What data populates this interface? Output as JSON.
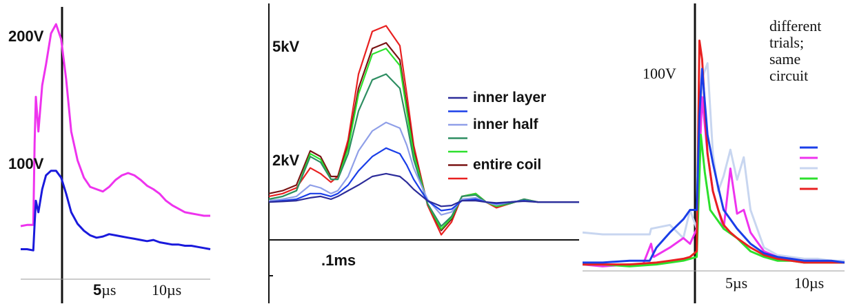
{
  "chart_data": [
    {
      "type": "line",
      "panel": "left",
      "y_tick_labels": [
        "200V",
        "100V"
      ],
      "x_tick_labels": [
        {
          "bold": "5",
          "rest": "µs"
        },
        {
          "bold": "",
          "rest": "10µs"
        }
      ],
      "x_unit": "µs",
      "y_unit": "V",
      "xlim": [
        -1,
        14
      ],
      "ylim": [
        -5,
        225
      ],
      "series": [
        {
          "color": "#ee33ee",
          "x": [
            -1,
            -0.5,
            0,
            0.1,
            0.2,
            0.4,
            0.7,
            1,
            1.4,
            1.8,
            2.2,
            2.6,
            3,
            3.5,
            4,
            4.5,
            5,
            5.5,
            6,
            6.5,
            7,
            7.5,
            8,
            8.5,
            9,
            9.5,
            10,
            10.5,
            11,
            11.5,
            12,
            12.5,
            13,
            13.5,
            14
          ],
          "y": [
            38,
            39,
            39,
            110,
            150,
            120,
            160,
            178,
            205,
            213,
            200,
            165,
            120,
            95,
            80,
            72,
            70,
            68,
            72,
            78,
            82,
            84,
            82,
            78,
            73,
            70,
            66,
            60,
            56,
            53,
            50,
            49,
            48,
            47,
            47
          ]
        },
        {
          "color": "#1a1adc",
          "x": [
            -1,
            -0.5,
            0,
            0.1,
            0.2,
            0.4,
            0.7,
            1,
            1.4,
            1.8,
            2.2,
            2.6,
            3,
            3.5,
            4,
            4.5,
            5,
            5.5,
            6,
            6.5,
            7,
            7.5,
            8,
            8.5,
            9,
            9.5,
            10,
            10.5,
            11,
            11.5,
            12,
            12.5,
            13,
            13.5,
            14
          ],
          "y": [
            18,
            18,
            17,
            40,
            60,
            50,
            70,
            82,
            86,
            86,
            80,
            66,
            50,
            40,
            34,
            30,
            28,
            29,
            31,
            30,
            29,
            28,
            27,
            26,
            25,
            26,
            24,
            23,
            22,
            22,
            21,
            21,
            20,
            19,
            18
          ]
        }
      ]
    },
    {
      "type": "line",
      "panel": "middle",
      "y_tick_labels": [
        "5kV",
        "2kV"
      ],
      "x_tick_labels": [
        ".1ms"
      ],
      "x_unit": "ms",
      "y_unit": "kV",
      "xlim": [
        -0.1,
        0.35
      ],
      "ylim": [
        -1.5,
        6.5
      ],
      "legend": {
        "position": "right",
        "entries": [
          {
            "label": "inner layer",
            "color": "#2c2c9a"
          },
          {
            "label": "",
            "color": "#1a3ee8"
          },
          {
            "label": "inner half",
            "color": "#8f9fe8"
          },
          {
            "label": "",
            "color": "#2e8e62"
          },
          {
            "label": "",
            "color": "#2ce02c"
          },
          {
            "label": "entire coil",
            "color": "#7a1414"
          },
          {
            "label": "",
            "color": "#e82020"
          }
        ]
      },
      "series": [
        {
          "color": "#e82020",
          "x": [
            -0.1,
            -0.08,
            -0.06,
            -0.04,
            -0.025,
            -0.01,
            0,
            0.015,
            0.03,
            0.05,
            0.07,
            0.09,
            0.1,
            0.11,
            0.13,
            0.15,
            0.165,
            0.18,
            0.2,
            0.215,
            0.23,
            0.25,
            0.27,
            0.29,
            0.31,
            0.33,
            0.35
          ],
          "y": [
            0.2,
            0.3,
            0.5,
            1.2,
            1.0,
            0.7,
            0.9,
            2.2,
            4.5,
            6.0,
            6.2,
            5.5,
            3.8,
            2.0,
            -0.1,
            -1.15,
            -0.7,
            0.2,
            0.3,
            0.0,
            -0.2,
            -0.05,
            0.1,
            0.0,
            0.0,
            0.0,
            0.0
          ]
        },
        {
          "color": "#7a1414",
          "x": [
            -0.1,
            -0.08,
            -0.06,
            -0.04,
            -0.025,
            -0.01,
            0,
            0.015,
            0.03,
            0.05,
            0.07,
            0.09,
            0.1,
            0.11,
            0.13,
            0.15,
            0.165,
            0.18,
            0.2,
            0.215,
            0.23,
            0.25,
            0.27,
            0.29,
            0.31,
            0.33,
            0.35
          ],
          "y": [
            0.3,
            0.4,
            0.6,
            1.8,
            1.6,
            0.9,
            0.9,
            2.0,
            4.0,
            5.4,
            5.6,
            5.0,
            3.4,
            1.8,
            -0.05,
            -1.0,
            -0.6,
            0.2,
            0.3,
            0.0,
            -0.15,
            -0.05,
            0.1,
            0.0,
            0.0,
            0.0,
            0.0
          ]
        },
        {
          "color": "#2ce02c",
          "x": [
            -0.1,
            -0.08,
            -0.06,
            -0.04,
            -0.025,
            -0.01,
            0,
            0.015,
            0.03,
            0.05,
            0.07,
            0.09,
            0.1,
            0.11,
            0.13,
            0.15,
            0.165,
            0.18,
            0.2,
            0.215,
            0.23,
            0.25,
            0.27,
            0.29,
            0.31,
            0.33,
            0.35
          ],
          "y": [
            0.1,
            0.2,
            0.4,
            1.7,
            1.5,
            0.8,
            0.8,
            1.9,
            3.8,
            5.2,
            5.4,
            4.8,
            3.2,
            1.7,
            -0.05,
            -0.95,
            -0.55,
            0.2,
            0.3,
            0.0,
            -0.15,
            -0.05,
            0.1,
            0.0,
            0.0,
            0.0,
            0.0
          ]
        },
        {
          "color": "#2e8e62",
          "x": [
            -0.1,
            -0.08,
            -0.06,
            -0.04,
            -0.025,
            -0.01,
            0,
            0.015,
            0.03,
            0.05,
            0.07,
            0.09,
            0.1,
            0.11,
            0.13,
            0.15,
            0.165,
            0.18,
            0.2,
            0.215,
            0.23,
            0.25,
            0.27,
            0.29,
            0.31,
            0.33,
            0.35
          ],
          "y": [
            0.1,
            0.2,
            0.4,
            1.6,
            1.4,
            0.8,
            0.8,
            1.7,
            3.2,
            4.3,
            4.5,
            4.0,
            2.8,
            1.5,
            -0.05,
            -0.85,
            -0.5,
            0.2,
            0.25,
            0.0,
            -0.1,
            -0.05,
            0.1,
            0.0,
            0.0,
            0.0,
            0.0
          ]
        },
        {
          "color": "#8f9fe8",
          "x": [
            -0.1,
            -0.08,
            -0.06,
            -0.04,
            -0.025,
            -0.01,
            0,
            0.015,
            0.03,
            0.05,
            0.07,
            0.09,
            0.1,
            0.11,
            0.13,
            0.15,
            0.165,
            0.18,
            0.2,
            0.215,
            0.23,
            0.25,
            0.27,
            0.29,
            0.31,
            0.33,
            0.35
          ],
          "y": [
            0.05,
            0.1,
            0.2,
            0.6,
            0.5,
            0.3,
            0.4,
            0.9,
            1.8,
            2.5,
            2.8,
            2.6,
            2.0,
            1.2,
            0.1,
            -0.45,
            -0.35,
            0.1,
            0.15,
            0.0,
            -0.1,
            0.0,
            0.05,
            0.0,
            0.0,
            0.0,
            0.0
          ]
        },
        {
          "color": "#1a3ee8",
          "x": [
            -0.1,
            -0.08,
            -0.06,
            -0.04,
            -0.025,
            -0.01,
            0,
            0.015,
            0.03,
            0.05,
            0.07,
            0.09,
            0.1,
            0.11,
            0.13,
            0.15,
            0.165,
            0.18,
            0.2,
            0.215,
            0.23,
            0.25,
            0.27,
            0.29,
            0.31,
            0.33,
            0.35
          ],
          "y": [
            0.0,
            0.05,
            0.1,
            0.3,
            0.3,
            0.2,
            0.3,
            0.6,
            1.1,
            1.6,
            1.9,
            1.7,
            1.3,
            0.8,
            0.05,
            -0.3,
            -0.25,
            0.05,
            0.1,
            0.0,
            -0.05,
            0.0,
            0.05,
            0.0,
            0.0,
            0.0,
            0.0
          ]
        },
        {
          "color": "#2c2c9a",
          "x": [
            -0.1,
            -0.08,
            -0.06,
            -0.04,
            -0.025,
            -0.01,
            0,
            0.015,
            0.03,
            0.05,
            0.07,
            0.09,
            0.1,
            0.11,
            0.13,
            0.15,
            0.165,
            0.18,
            0.2,
            0.215,
            0.23,
            0.25,
            0.27,
            0.29,
            0.31,
            0.33,
            0.35
          ],
          "y": [
            0.0,
            0.02,
            0.05,
            0.15,
            0.2,
            0.1,
            0.2,
            0.4,
            0.6,
            0.9,
            1.0,
            0.9,
            0.7,
            0.45,
            0.05,
            -0.15,
            -0.12,
            0.05,
            0.05,
            0.0,
            -0.03,
            0.0,
            0.03,
            0.0,
            0.0,
            0.0,
            0.0
          ]
        }
      ]
    },
    {
      "type": "line",
      "panel": "right",
      "y_tick_labels": [
        "100V"
      ],
      "x_tick_labels": [
        "5µs",
        "10µs"
      ],
      "x_unit": "µs",
      "y_unit": "V",
      "xlim": [
        -8.5,
        11
      ],
      "ylim": [
        -5,
        135
      ],
      "legend": {
        "position": "top-right",
        "title_lines": [
          "different",
          "trials;",
          "same",
          "circuit"
        ],
        "colors": [
          "#1a3ee8",
          "#ee33ee",
          "#c8d6f0",
          "#2ce02c",
          "#e82020"
        ]
      },
      "series": [
        {
          "color": "#c8d6f0",
          "x": [
            -8.5,
            -7,
            -5,
            -3.5,
            -3.4,
            -2,
            -1,
            -0.5,
            0,
            0.4,
            0.8,
            1.2,
            1.6,
            2,
            2.5,
            3,
            3.5,
            4,
            4.5,
            5,
            6,
            7,
            8,
            9,
            10,
            11
          ],
          "y": [
            18,
            17,
            17,
            17,
            20,
            22,
            15,
            30,
            20,
            100,
            108,
            60,
            40,
            48,
            62,
            46,
            58,
            30,
            20,
            10,
            6,
            5,
            4,
            4,
            3,
            3
          ]
        },
        {
          "color": "#ee33ee",
          "x": [
            -8.5,
            -7,
            -5,
            -4,
            -3.4,
            -3.2,
            -2,
            -1,
            -0.5,
            0,
            0.4,
            0.8,
            1.2,
            1.6,
            2,
            2.5,
            3,
            3.5,
            4,
            5,
            6,
            7,
            8,
            9,
            10,
            11
          ],
          "y": [
            1,
            0,
            1,
            1,
            12,
            5,
            10,
            15,
            12,
            20,
            90,
            60,
            40,
            30,
            20,
            52,
            28,
            30,
            18,
            8,
            5,
            4,
            3,
            3,
            2,
            2
          ]
        },
        {
          "color": "#2ce02c",
          "x": [
            -8.5,
            -7,
            -5,
            -3,
            -2,
            -1,
            -0.5,
            0,
            0.3,
            0.6,
            1,
            1.5,
            2,
            3,
            4,
            5,
            6,
            7,
            8,
            9,
            10,
            11
          ],
          "y": [
            1,
            1,
            0,
            1,
            2,
            3,
            4,
            5,
            70,
            50,
            30,
            25,
            20,
            15,
            8,
            5,
            3,
            3,
            2,
            2,
            2,
            2
          ]
        },
        {
          "color": "#e82020",
          "x": [
            -8.5,
            -7,
            -5,
            -3,
            -2,
            -1,
            -0.5,
            0,
            0.2,
            0.4,
            0.8,
            1.2,
            1.6,
            2,
            2.5,
            3,
            4,
            5,
            6,
            7,
            8,
            9,
            10,
            11
          ],
          "y": [
            1,
            1,
            1,
            2,
            3,
            4,
            5,
            8,
            120,
            110,
            60,
            40,
            30,
            22,
            18,
            15,
            10,
            6,
            4,
            3,
            2,
            2,
            2,
            2
          ]
        },
        {
          "color": "#1a3ee8",
          "x": [
            -8.5,
            -7,
            -5,
            -3.5,
            -3,
            -2,
            -1,
            -0.5,
            0,
            0.2,
            0.4,
            0.8,
            1.2,
            1.6,
            2,
            2.5,
            3,
            4,
            5,
            6,
            7,
            8,
            9,
            10,
            11
          ],
          "y": [
            2,
            2,
            3,
            3,
            10,
            18,
            25,
            30,
            30,
            80,
            105,
            70,
            55,
            42,
            30,
            25,
            20,
            12,
            7,
            5,
            4,
            3,
            3,
            3,
            2
          ]
        }
      ]
    }
  ]
}
